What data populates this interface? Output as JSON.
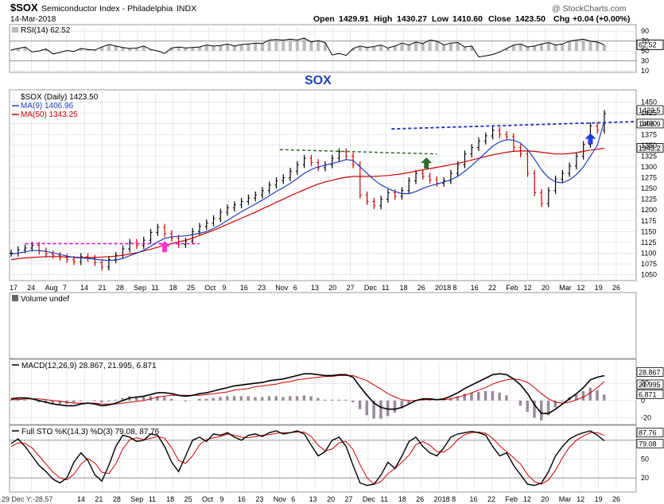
{
  "header": {
    "symbol": "$SOX",
    "name": "Semiconductor Index - Philadelphia",
    "exchange": "INDX",
    "date": "14-Mar-2018",
    "watermark": "@ StockCharts.com",
    "open_label": "Open",
    "open": "1429.91",
    "high_label": "High",
    "high": "1430.27",
    "low_label": "Low",
    "low": "1410.60",
    "close_label": "Close",
    "close": "1423.50",
    "chg_label": "Chg",
    "chg": "+0.04 (+0.00%)",
    "chg_arrow": "▲"
  },
  "annotation": {
    "big_label": "SOX"
  },
  "footer": {
    "note": "29 Dec Y:-28.57"
  },
  "colors": {
    "price_bar_up": "#000000",
    "price_bar_down": "#cc0000",
    "ma9": "#1f3fbf",
    "ma50": "#cc0000",
    "support_line": "#e000e0",
    "resistance_line_mid": "#2e6b2e",
    "resistance_line_top": "#1f2fbf",
    "arrow_pink": "#ff33cc",
    "arrow_green": "#2e6b2e",
    "arrow_blue": "#1f3fdf",
    "sox_label": "#1f3fbf",
    "grid": "#d8d8d8",
    "macd_hist": "#9a8a9a"
  },
  "chart_data": [
    {
      "type": "line",
      "panel": "rsi",
      "legend": "RSI(14) 62.52",
      "ylim": [
        10,
        100
      ],
      "yticks": [
        "90",
        "70",
        "50",
        "30",
        "10"
      ],
      "last_value_label": "62.52",
      "x": [
        0,
        2,
        4,
        6,
        8,
        10,
        12,
        14,
        16,
        18,
        20,
        22,
        24,
        26,
        28,
        30,
        32,
        34,
        36,
        38,
        40,
        42,
        44,
        46,
        48,
        50,
        52,
        54,
        56,
        58,
        60,
        62,
        64,
        66,
        68,
        70,
        72,
        74,
        76,
        78,
        80,
        82,
        84,
        86,
        88,
        90,
        92,
        94,
        96,
        98,
        100,
        102,
        104,
        106,
        108,
        110,
        112,
        114,
        116,
        118,
        120,
        122,
        124,
        126,
        128,
        130,
        132,
        134,
        136,
        138,
        140,
        142,
        144,
        146,
        148,
        150,
        152,
        154,
        156,
        158,
        160,
        162,
        164,
        166,
        168,
        170
      ],
      "values": [
        52,
        55,
        58,
        48,
        50,
        54,
        44,
        47,
        51,
        49,
        55,
        53,
        52,
        58,
        63,
        60,
        57,
        55,
        56,
        60,
        53,
        50,
        45,
        56,
        58,
        56,
        57,
        58,
        62,
        60,
        61,
        64,
        60,
        63,
        64,
        66,
        65,
        72,
        73,
        72,
        74,
        72,
        76,
        68,
        71,
        67,
        42,
        45,
        41,
        55,
        60,
        57,
        59,
        62,
        56,
        60,
        66,
        62,
        68,
        65,
        72,
        70,
        62,
        66,
        67,
        58,
        60,
        38,
        40,
        43,
        48,
        55,
        62,
        64,
        58,
        60,
        64,
        67,
        62,
        64,
        70,
        72,
        74,
        70,
        68,
        62.52
      ]
    },
    {
      "type": "line",
      "panel": "price",
      "legend_items": [
        "$SOX (Daily) 1423.50",
        "MA(9) 1406.96",
        "MA(50) 1343.25"
      ],
      "ylim": [
        1040,
        1475
      ],
      "yticks": [
        "1450",
        "1425",
        "1400",
        "1375",
        "1350",
        "1325",
        "1300",
        "1275",
        "1250",
        "1225",
        "1200",
        "1175",
        "1150",
        "1125",
        "1100",
        "1075",
        "1050"
      ],
      "last_value_labels": [
        "1423.5",
        "1406.9",
        "1343.2"
      ],
      "x_tick_labels": [
        "17",
        "24",
        "Aug",
        "7",
        "14",
        "21",
        "28",
        "Sep",
        "11",
        "18",
        "25",
        "Oct",
        "9",
        "16",
        "23",
        "Nov",
        "6",
        "13",
        "20",
        "27",
        "Dec",
        "11",
        "18",
        "26",
        "2018",
        "8",
        "16",
        "22",
        "Feb",
        "12",
        "20",
        "Mar",
        "12",
        "19",
        "26"
      ],
      "x": [
        0,
        2,
        4,
        6,
        8,
        10,
        12,
        14,
        16,
        18,
        20,
        22,
        24,
        26,
        28,
        30,
        32,
        34,
        36,
        38,
        40,
        42,
        44,
        46,
        48,
        50,
        52,
        54,
        56,
        58,
        60,
        62,
        64,
        66,
        68,
        70,
        72,
        74,
        76,
        78,
        80,
        82,
        84,
        86,
        88,
        90,
        92,
        94,
        96,
        98,
        100,
        102,
        104,
        106,
        108,
        110,
        112,
        114,
        116,
        118,
        120,
        122,
        124,
        126,
        128,
        130,
        132,
        134,
        136,
        138,
        140,
        142,
        144,
        146,
        148,
        150,
        152,
        154,
        156,
        158,
        160,
        162,
        164,
        166,
        168,
        170
      ],
      "close": [
        1100,
        1108,
        1112,
        1118,
        1105,
        1098,
        1095,
        1090,
        1085,
        1080,
        1092,
        1088,
        1078,
        1068,
        1085,
        1095,
        1110,
        1125,
        1118,
        1130,
        1148,
        1160,
        1145,
        1135,
        1120,
        1128,
        1150,
        1162,
        1170,
        1180,
        1195,
        1205,
        1212,
        1220,
        1228,
        1235,
        1245,
        1258,
        1268,
        1275,
        1290,
        1305,
        1320,
        1310,
        1298,
        1305,
        1320,
        1335,
        1325,
        1305,
        1235,
        1220,
        1210,
        1225,
        1240,
        1232,
        1245,
        1268,
        1285,
        1278,
        1270,
        1262,
        1268,
        1285,
        1305,
        1330,
        1345,
        1360,
        1372,
        1385,
        1375,
        1370,
        1345,
        1330,
        1285,
        1240,
        1215,
        1245,
        1272,
        1285,
        1302,
        1325,
        1352,
        1395,
        1385,
        1423.5
      ],
      "ma9": [
        1098,
        1100,
        1103,
        1106,
        1106,
        1104,
        1101,
        1097,
        1093,
        1090,
        1089,
        1088,
        1086,
        1084,
        1083,
        1084,
        1088,
        1094,
        1100,
        1107,
        1116,
        1126,
        1134,
        1138,
        1139,
        1140,
        1143,
        1146,
        1150,
        1157,
        1166,
        1176,
        1186,
        1196,
        1205,
        1214,
        1223,
        1233,
        1243,
        1252,
        1262,
        1273,
        1285,
        1294,
        1300,
        1304,
        1308,
        1312,
        1317,
        1315,
        1300,
        1285,
        1270,
        1258,
        1250,
        1243,
        1238,
        1238,
        1243,
        1250,
        1256,
        1260,
        1265,
        1270,
        1278,
        1290,
        1303,
        1318,
        1333,
        1348,
        1358,
        1363,
        1362,
        1355,
        1340,
        1318,
        1293,
        1275,
        1265,
        1263,
        1270,
        1282,
        1300,
        1325,
        1350,
        1406.96
      ],
      "ma50": [
        1085,
        1087,
        1089,
        1090,
        1091,
        1092,
        1092,
        1092,
        1091,
        1091,
        1090,
        1090,
        1090,
        1091,
        1092,
        1093,
        1095,
        1098,
        1101,
        1105,
        1109,
        1114,
        1118,
        1122,
        1126,
        1130,
        1135,
        1141,
        1147,
        1153,
        1160,
        1167,
        1174,
        1181,
        1188,
        1195,
        1203,
        1210,
        1218,
        1225,
        1233,
        1240,
        1247,
        1254,
        1260,
        1265,
        1269,
        1273,
        1276,
        1278,
        1278,
        1278,
        1278,
        1279,
        1280,
        1282,
        1284,
        1287,
        1290,
        1293,
        1296,
        1299,
        1302,
        1305,
        1308,
        1312,
        1316,
        1320,
        1324,
        1328,
        1331,
        1334,
        1336,
        1337,
        1337,
        1336,
        1334,
        1332,
        1330,
        1330,
        1331,
        1333,
        1336,
        1339,
        1341,
        1343.25
      ]
    },
    {
      "type": "bar",
      "panel": "volume",
      "legend": "Volume undef",
      "values": []
    },
    {
      "type": "line",
      "panel": "macd",
      "legend": "MACD(12,26,9) 28.867, 21.995, 6.871",
      "ylim": [
        -25,
        45
      ],
      "yticks": [
        "20",
        "0",
        "-20"
      ],
      "last_value_labels": [
        "28.867",
        "21.995",
        "6.871"
      ],
      "x": [
        0,
        2,
        4,
        6,
        8,
        10,
        12,
        14,
        16,
        18,
        20,
        22,
        24,
        26,
        28,
        30,
        32,
        34,
        36,
        38,
        40,
        42,
        44,
        46,
        48,
        50,
        52,
        54,
        56,
        58,
        60,
        62,
        64,
        66,
        68,
        70,
        72,
        74,
        76,
        78,
        80,
        82,
        84,
        86,
        88,
        90,
        92,
        94,
        96,
        98,
        100,
        102,
        104,
        106,
        108,
        110,
        112,
        114,
        116,
        118,
        120,
        122,
        124,
        126,
        128,
        130,
        132,
        134,
        136,
        138,
        140,
        142,
        144,
        146,
        148,
        150,
        152,
        154,
        156,
        158,
        160,
        162,
        164,
        166,
        168,
        170
      ],
      "macd": [
        2,
        3,
        3,
        2,
        0,
        -2,
        -4,
        -5,
        -6,
        -6,
        -4,
        -3,
        -4,
        -6,
        -5,
        -3,
        0,
        3,
        4,
        5,
        7,
        9,
        9,
        8,
        6,
        5,
        6,
        8,
        9,
        11,
        13,
        15,
        17,
        18,
        19,
        20,
        21,
        23,
        24,
        25,
        27,
        29,
        31,
        31,
        30,
        29,
        29,
        30,
        30,
        27,
        16,
        6,
        -3,
        -8,
        -10,
        -10,
        -8,
        -4,
        0,
        2,
        2,
        1,
        2,
        5,
        9,
        14,
        18,
        22,
        26,
        30,
        31,
        30,
        25,
        18,
        8,
        -5,
        -15,
        -15,
        -10,
        -4,
        2,
        8,
        15,
        24,
        27,
        28.867
      ],
      "signal": [
        1,
        1,
        2,
        2,
        2,
        1,
        0,
        -1,
        -2,
        -3,
        -3,
        -3,
        -3,
        -4,
        -4,
        -4,
        -3,
        -2,
        -1,
        0,
        2,
        4,
        5,
        6,
        6,
        6,
        6,
        6,
        7,
        8,
        9,
        10,
        12,
        13,
        14,
        16,
        17,
        18,
        19,
        21,
        22,
        24,
        25,
        26,
        27,
        28,
        28,
        29,
        29,
        29,
        26,
        23,
        18,
        13,
        8,
        4,
        1,
        0,
        0,
        1,
        1,
        1,
        1,
        2,
        4,
        6,
        9,
        12,
        15,
        19,
        22,
        24,
        25,
        24,
        21,
        15,
        8,
        2,
        -2,
        -3,
        -2,
        1,
        4,
        9,
        15,
        21.995
      ],
      "histogram": [
        1,
        2,
        1,
        0,
        -2,
        -3,
        -4,
        -4,
        -4,
        -3,
        -1,
        0,
        -1,
        -2,
        -1,
        1,
        3,
        5,
        5,
        5,
        5,
        5,
        4,
        2,
        0,
        -1,
        0,
        2,
        2,
        3,
        4,
        5,
        5,
        5,
        5,
        4,
        4,
        5,
        5,
        4,
        5,
        5,
        6,
        5,
        3,
        1,
        1,
        1,
        1,
        -2,
        -10,
        -17,
        -21,
        -21,
        -18,
        -14,
        -9,
        -4,
        0,
        1,
        1,
        0,
        1,
        3,
        5,
        8,
        9,
        10,
        11,
        11,
        9,
        6,
        0,
        -6,
        -13,
        -20,
        -23,
        -17,
        -8,
        -1,
        4,
        7,
        11,
        15,
        12,
        6.871
      ]
    },
    {
      "type": "line",
      "panel": "stochastic",
      "legend": "Full STO %K(14,3) %D(3) 79.08, 87.76",
      "ylim": [
        0,
        100
      ],
      "yticks": [
        "50",
        "20"
      ],
      "last_value_labels": [
        "87.76",
        "79.08"
      ],
      "x_tick_labels": [
        "14",
        "21",
        "28",
        "Sep",
        "11",
        "18",
        "25",
        "Oct",
        "9",
        "16",
        "23",
        "Nov",
        "6",
        "13",
        "20",
        "27",
        "Dec",
        "11",
        "18",
        "26",
        "2018",
        "8",
        "16",
        "22",
        "Feb",
        "12",
        "20",
        "Mar",
        "12",
        "19",
        "26"
      ],
      "x": [
        0,
        2,
        4,
        6,
        8,
        10,
        12,
        14,
        16,
        18,
        20,
        22,
        24,
        26,
        28,
        30,
        32,
        34,
        36,
        38,
        40,
        42,
        44,
        46,
        48,
        50,
        52,
        54,
        56,
        58,
        60,
        62,
        64,
        66,
        68,
        70,
        72,
        74,
        76,
        78,
        80,
        82,
        84,
        86,
        88,
        90,
        92,
        94,
        96,
        98,
        100,
        102,
        104,
        106,
        108,
        110,
        112,
        114,
        116,
        118,
        120,
        122,
        124,
        126,
        128,
        130,
        132,
        134,
        136,
        138,
        140,
        142,
        144,
        146,
        148,
        150,
        152,
        154,
        156,
        158,
        160,
        162,
        164,
        166,
        168,
        170
      ],
      "k": [
        75,
        82,
        70,
        55,
        40,
        30,
        18,
        12,
        20,
        45,
        60,
        48,
        25,
        15,
        40,
        70,
        88,
        85,
        78,
        80,
        90,
        88,
        70,
        45,
        30,
        55,
        80,
        85,
        78,
        90,
        88,
        92,
        85,
        80,
        88,
        90,
        86,
        92,
        95,
        90,
        92,
        95,
        90,
        72,
        55,
        62,
        80,
        85,
        70,
        40,
        12,
        8,
        10,
        25,
        45,
        35,
        55,
        78,
        85,
        70,
        60,
        55,
        68,
        85,
        90,
        92,
        94,
        92,
        88,
        70,
        55,
        60,
        40,
        25,
        10,
        8,
        12,
        30,
        55,
        70,
        82,
        88,
        92,
        95,
        88,
        79.08
      ],
      "d": [
        70,
        76,
        75,
        68,
        55,
        42,
        29,
        20,
        17,
        26,
        42,
        51,
        44,
        29,
        27,
        42,
        66,
        81,
        84,
        81,
        83,
        86,
        83,
        68,
        48,
        43,
        55,
        73,
        81,
        84,
        86,
        90,
        88,
        85,
        84,
        86,
        88,
        89,
        91,
        92,
        92,
        93,
        93,
        86,
        72,
        63,
        66,
        76,
        78,
        65,
        41,
        20,
        10,
        14,
        27,
        35,
        45,
        56,
        73,
        78,
        72,
        62,
        61,
        69,
        81,
        89,
        92,
        93,
        91,
        83,
        71,
        62,
        52,
        42,
        25,
        14,
        10,
        17,
        32,
        52,
        69,
        80,
        87,
        92,
        92,
        87.76
      ]
    }
  ]
}
